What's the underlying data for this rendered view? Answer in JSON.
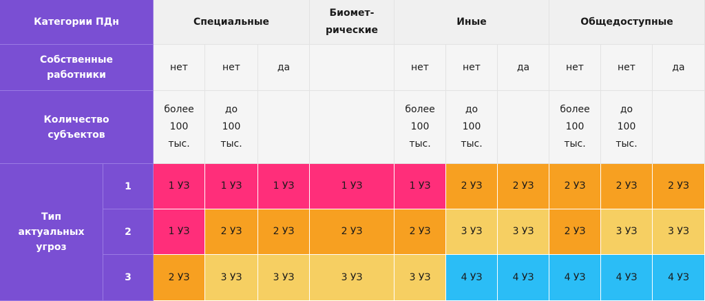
{
  "table": {
    "corner": "Категории ПДн",
    "groups": [
      "Специальные",
      "Биомет-\nрические",
      "Иные",
      "Общедоступные"
    ],
    "owner_label": "Собственные\nработники",
    "owners": [
      "нет",
      "нет",
      "да",
      null,
      "нет",
      "нет",
      "да",
      "нет",
      "нет",
      "да"
    ],
    "count_label": "Количество\nсубъектов",
    "counts": [
      "более\n100\nтыс.",
      "до\n100\nтыс.",
      null,
      null,
      "более\n100\nтыс.",
      "до\n100\nтыс.",
      null,
      "более\n100\nтыс.",
      "до\n100\nтыс.",
      null
    ],
    "threat_label": "Тип\nактуальных\nугроз",
    "threat_types": [
      "1",
      "2",
      "3"
    ],
    "rows": [
      [
        "1 УЗ",
        "1 УЗ",
        "1 УЗ",
        "1 УЗ",
        "1 УЗ",
        "2 УЗ",
        "2 УЗ",
        "2 УЗ",
        "2 УЗ",
        "2 УЗ"
      ],
      [
        "1 УЗ",
        "2 УЗ",
        "2 УЗ",
        "2 УЗ",
        "2 УЗ",
        "3 УЗ",
        "3 УЗ",
        "2 УЗ",
        "3 УЗ",
        "3 УЗ"
      ],
      [
        "2 УЗ",
        "3 УЗ",
        "3 УЗ",
        "3 УЗ",
        "3 УЗ",
        "4 УЗ",
        "4 УЗ",
        "4 УЗ",
        "4 УЗ",
        "4 УЗ"
      ]
    ],
    "level_colors": {
      "1 УЗ": "#ff2e7a",
      "2 УЗ": "#f7a021",
      "3 УЗ": "#f6cf62",
      "4 УЗ": "#2bbdf6"
    }
  }
}
